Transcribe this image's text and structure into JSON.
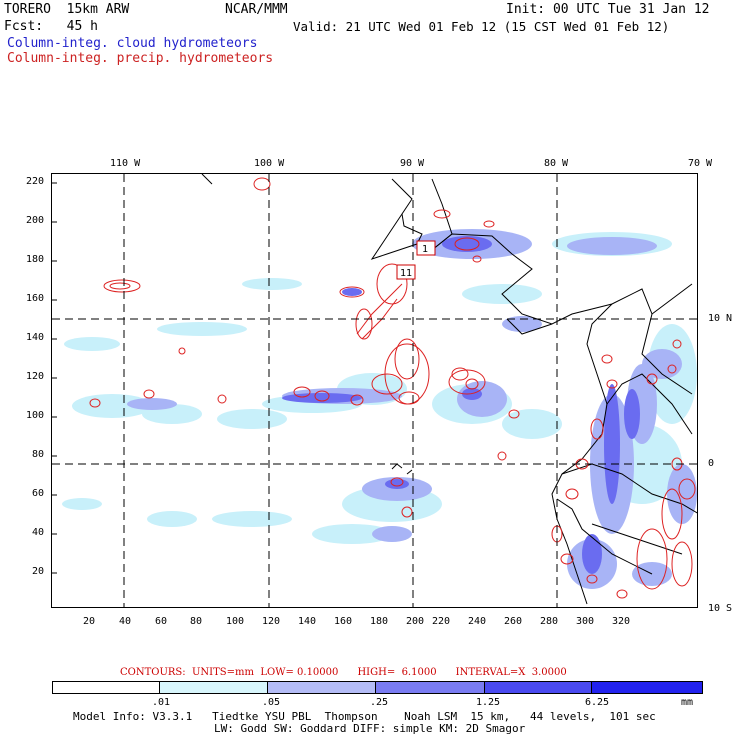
{
  "header": {
    "model": "TORERO  15km ARW",
    "org": "NCAR/MMM",
    "init": "Init: 00 UTC Tue 31 Jan 12",
    "fcst": "Fcst:   45 h",
    "valid": "Valid: 21 UTC Wed 01 Feb 12 (15 CST Wed 01 Feb 12)",
    "cloud_label": "Column-integ. cloud hydrometeors",
    "precip_label": "Column-integ. precip. hydrometeors"
  },
  "map": {
    "top_lon_labels": [
      "110 W",
      "100 W",
      "90 W",
      "80 W",
      "70 W"
    ],
    "right_lat_labels": [
      "10 N",
      "0",
      "10 S"
    ],
    "left_y_ticks": [
      "220",
      "200",
      "180",
      "160",
      "140",
      "120",
      "100",
      "80",
      "60",
      "40",
      "20"
    ],
    "bottom_x_ticks": [
      "20",
      "40",
      "60",
      "80",
      "100",
      "120",
      "140",
      "160",
      "180",
      "200",
      "220",
      "240",
      "260",
      "280",
      "300",
      "320"
    ],
    "boxes": [
      "1",
      "11"
    ],
    "colors": {
      "cloud_light": "#c8f0fa",
      "cloud_mid": "#a8b4f6",
      "cloud_dark": "#6a6cf0",
      "precip_contour": "#dd2222",
      "coast": "#000000"
    }
  },
  "contours": {
    "text": "CONTOURS:  UNITS=mm  LOW= 0.10000      HIGH=  6.1000      INTERVAL=X  3.0000"
  },
  "legend": {
    "labels": [
      ".01",
      ".05",
      ".25",
      "1.25",
      "6.25"
    ],
    "unit": "mm",
    "colors": [
      "#ffffff",
      "#d8f6fc",
      "#b4bcf6",
      "#7a7cf2",
      "#4a4af0",
      "#2222ee"
    ]
  },
  "footer": {
    "line1": "Model Info: V3.3.1   Tiedtke YSU PBL  Thompson    Noah LSM  15 km,   44 levels,  101 sec",
    "line2": "LW: Godd SW: Goddard DIFF: simple KM: 2D Smagor"
  }
}
